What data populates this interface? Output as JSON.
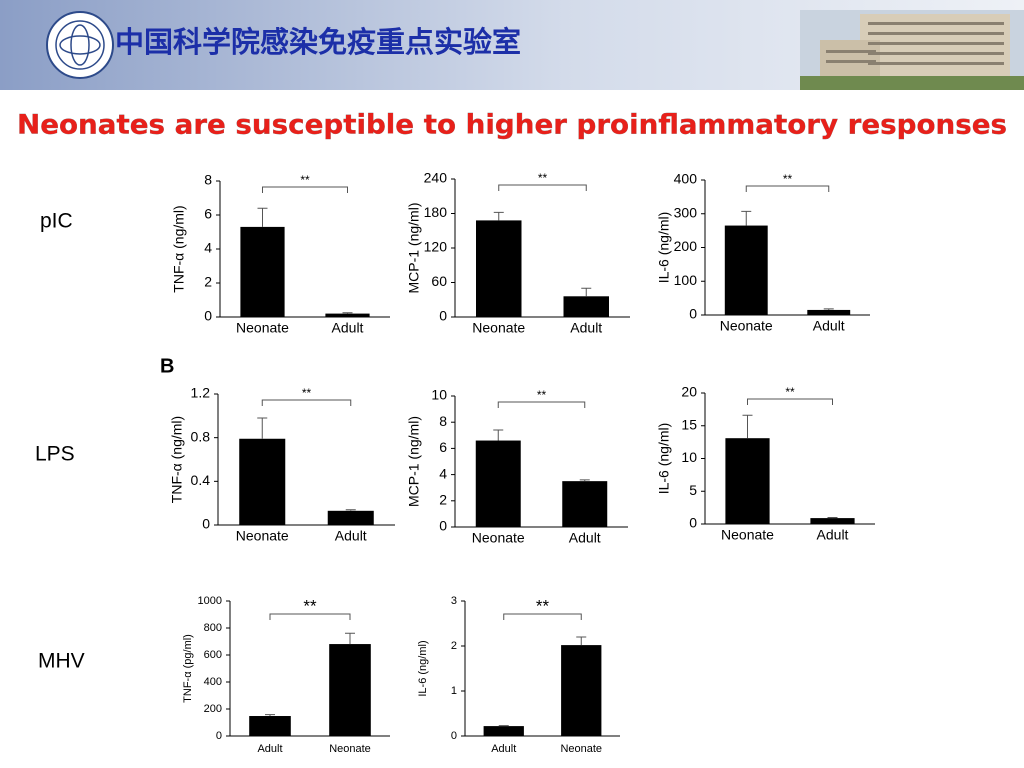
{
  "header": {
    "institute": "中国科学院感染免疫重点实验室"
  },
  "title": "Neonates are susceptible to higher proinflammatory responses",
  "row_labels": [
    "pIC",
    "LPS",
    "MHV"
  ],
  "panel_label": "B",
  "chart_data": [
    {
      "type": "bar",
      "y_label": "TNF-α (ng/ml)",
      "categories": [
        "Neonate",
        "Adult"
      ],
      "values": [
        5.3,
        0.2
      ],
      "errors": [
        1.1,
        0.05
      ],
      "significance": "**",
      "color": "#000000",
      "ylim": [
        0,
        8
      ],
      "yticks": [
        0,
        2,
        4,
        6,
        8
      ]
    },
    {
      "type": "bar",
      "y_label": "MCP-1 (ng/ml)",
      "categories": [
        "Neonate",
        "Adult"
      ],
      "values": [
        168,
        36
      ],
      "errors": [
        14,
        14
      ],
      "significance": "**",
      "color": "#000000",
      "ylim": [
        0,
        240
      ],
      "yticks": [
        0,
        60,
        120,
        180,
        240
      ]
    },
    {
      "type": "bar",
      "y_label": "IL-6 (ng/ml)",
      "categories": [
        "Neonate",
        "Adult"
      ],
      "values": [
        265,
        15
      ],
      "errors": [
        42,
        3
      ],
      "significance": "**",
      "color": "#000000",
      "ylim": [
        0,
        400
      ],
      "yticks": [
        0,
        100,
        200,
        300,
        400
      ]
    },
    {
      "type": "bar",
      "y_label": "TNF-α (ng/ml)",
      "categories": [
        "Neonate",
        "Adult"
      ],
      "values": [
        0.79,
        0.13
      ],
      "errors": [
        0.19,
        0.01
      ],
      "significance": "**",
      "color": "#000000",
      "ylim": [
        0,
        1.2
      ],
      "yticks": [
        0,
        0.4,
        0.8,
        1.2
      ]
    },
    {
      "type": "bar",
      "y_label": "MCP-1 (ng/ml)",
      "categories": [
        "Neonate",
        "Adult"
      ],
      "values": [
        6.6,
        3.5
      ],
      "errors": [
        0.8,
        0.1
      ],
      "significance": "**",
      "color": "#000000",
      "ylim": [
        0,
        10
      ],
      "yticks": [
        0,
        2,
        4,
        6,
        8,
        10
      ]
    },
    {
      "type": "bar",
      "y_label": "IL-6 (ng/ml)",
      "categories": [
        "Neonate",
        "Adult"
      ],
      "values": [
        13.1,
        0.9
      ],
      "errors": [
        3.5,
        0.1
      ],
      "significance": "**",
      "color": "#000000",
      "ylim": [
        0,
        20
      ],
      "yticks": [
        0,
        5,
        10,
        15,
        20
      ]
    },
    {
      "type": "bar",
      "y_label": "TNF-α (pg/ml)",
      "categories": [
        "Adult",
        "Neonate"
      ],
      "values": [
        148,
        681
      ],
      "errors": [
        10,
        80
      ],
      "significance": "**",
      "color": "#000000",
      "ylim": [
        0,
        1000
      ],
      "yticks": [
        0,
        200,
        400,
        600,
        800,
        1000
      ]
    },
    {
      "type": "bar",
      "y_label": "IL-6 (ng/ml)",
      "categories": [
        "Adult",
        "Neonate"
      ],
      "values": [
        0.22,
        2.02
      ],
      "errors": [
        0.01,
        0.18
      ],
      "significance": "**",
      "color": "#000000",
      "ylim": [
        0,
        3
      ],
      "yticks": [
        0,
        1,
        2,
        3
      ]
    }
  ]
}
